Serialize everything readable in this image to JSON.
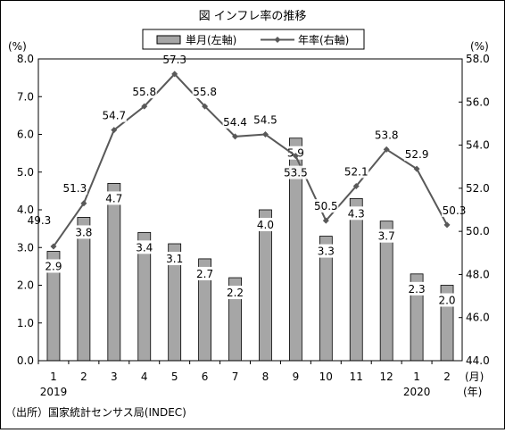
{
  "chart_data": {
    "type": "bar+line",
    "title": "図 インフレ率の推移",
    "source": "（出所）国家統計センサス局(INDEC)",
    "categories": [
      "1",
      "2",
      "3",
      "4",
      "5",
      "6",
      "7",
      "8",
      "9",
      "10",
      "11",
      "12",
      "1",
      "2"
    ],
    "year_labels": [
      {
        "index": 0,
        "label": "2019"
      },
      {
        "index": 12,
        "label": "2020"
      }
    ],
    "x_unit_month": "(月)",
    "x_unit_year": "(年)",
    "left_axis": {
      "unit": "(%)",
      "ylim": [
        0,
        8
      ],
      "ticks": [
        "0.0",
        "1.0",
        "2.0",
        "3.0",
        "4.0",
        "5.0",
        "6.0",
        "7.0",
        "8.0"
      ]
    },
    "right_axis": {
      "unit": "(%)",
      "ylim": [
        44,
        58
      ],
      "ticks": [
        "44.0",
        "46.0",
        "48.0",
        "50.0",
        "52.0",
        "54.0",
        "56.0",
        "58.0"
      ]
    },
    "legend": {
      "placement": "top-center"
    },
    "series": [
      {
        "name": "単月(左軸)",
        "type": "bar",
        "axis": "left",
        "color": "#a6a6a6",
        "values": [
          2.9,
          3.8,
          4.7,
          3.4,
          3.1,
          2.7,
          2.2,
          4.0,
          5.9,
          3.3,
          4.3,
          3.7,
          2.3,
          2.0
        ],
        "labels": [
          "2.9",
          "3.8",
          "4.7",
          "3.4",
          "3.1",
          "2.7",
          "2.2",
          "4.0",
          "5.9",
          "3.3",
          "4.3",
          "3.7",
          "2.3",
          "2.0"
        ]
      },
      {
        "name": "年率(右軸)",
        "type": "line",
        "axis": "right",
        "color": "#595959",
        "values": [
          49.3,
          51.3,
          54.7,
          55.8,
          57.3,
          55.8,
          54.4,
          54.5,
          53.5,
          50.5,
          52.1,
          53.8,
          52.9,
          50.3
        ],
        "labels": [
          "49.3",
          "51.3",
          "54.7",
          "55.8",
          "57.3",
          "55.8",
          "54.4",
          "54.5",
          "53.5",
          "50.5",
          "52.1",
          "53.8",
          "52.9",
          "50.3"
        ]
      }
    ]
  }
}
